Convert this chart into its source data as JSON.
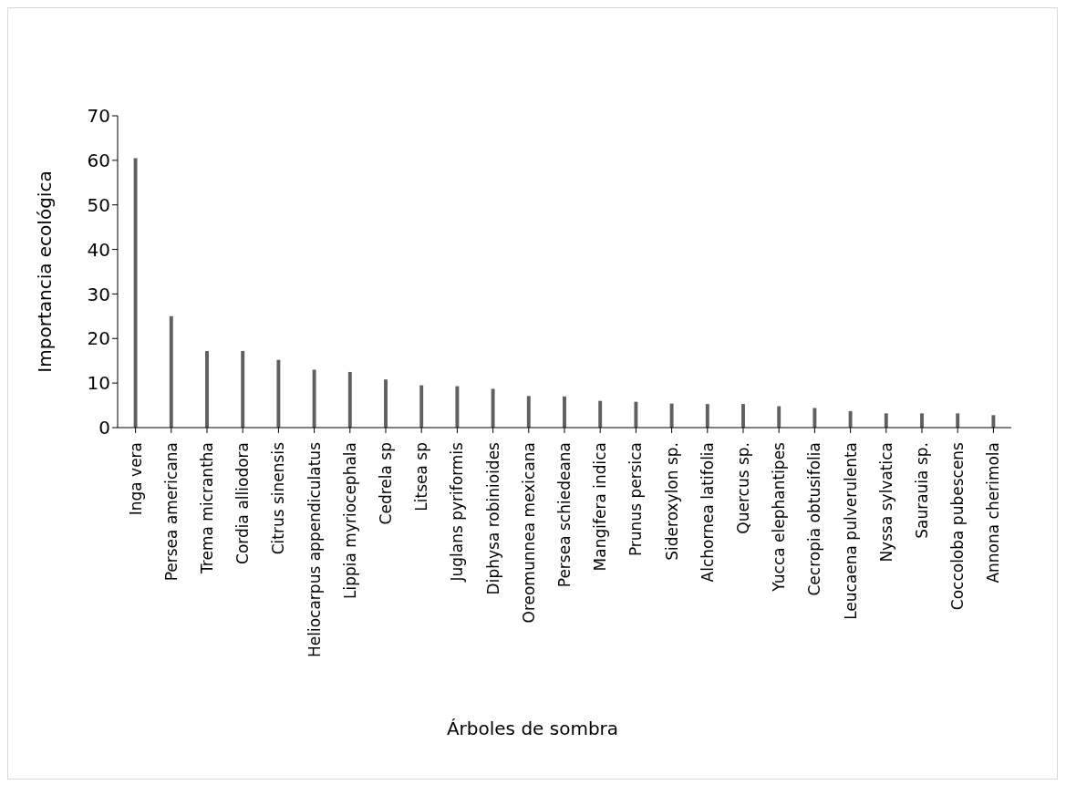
{
  "chart_data": {
    "type": "bar",
    "xlabel": "Árboles de sombra",
    "ylabel": "Importancia ecológica",
    "categories": [
      "Inga vera",
      "Persea americana",
      "Trema micrantha",
      "Cordia alliodora",
      "Citrus sinensis",
      "Heliocarpus appendiculatus",
      "Lippia myriocephala",
      "Cedrela sp",
      "Litsea sp",
      "Juglans pyriformis",
      "Diphysa robinioides",
      "Oreomunnea mexicana",
      "Persea schiedeana",
      "Mangifera indica",
      "Prunus persica",
      "Sideroxylon sp.",
      "Alchornea latifolia",
      "Quercus sp.",
      "Yucca elephantipes",
      "Cecropia obtusifolia",
      "Leucaena pulverulenta",
      "Nyssa sylvatica",
      "Saurauia sp.",
      "Coccoloba pubescens",
      "Annona cherimola"
    ],
    "values": [
      60.5,
      25,
      17.2,
      17.2,
      15.2,
      13,
      12.5,
      10.8,
      9.5,
      9.3,
      8.7,
      7.1,
      7,
      6,
      5.8,
      5.4,
      5.3,
      5.3,
      4.8,
      4.4,
      3.7,
      3.2,
      3.2,
      3.2,
      2.8
    ],
    "color": "#606060",
    "ylim": [
      0,
      70
    ],
    "yticks": [
      0,
      10,
      20,
      30,
      40,
      50,
      60,
      70
    ],
    "grid": false,
    "legend": false
  }
}
